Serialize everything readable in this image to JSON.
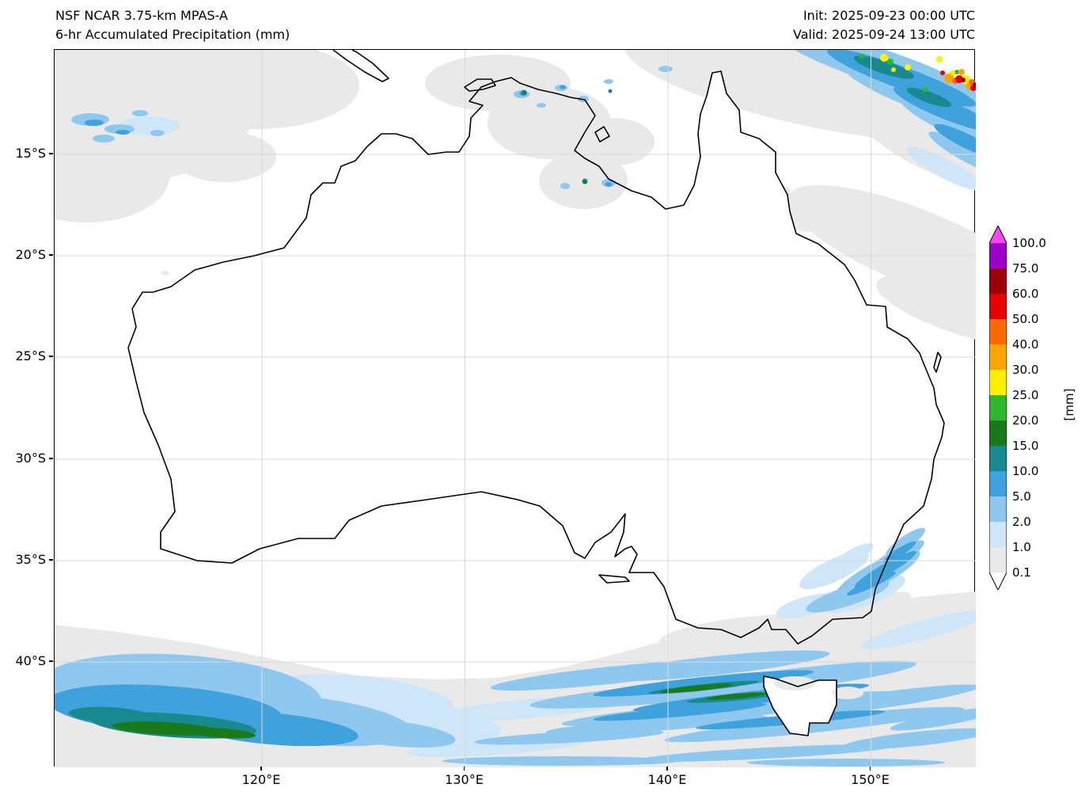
{
  "header": {
    "model_title": "NSF NCAR 3.75-km MPAS-A",
    "product_title": "6-hr Accumulated Precipitation (mm)",
    "init_time": "Init: 2025-09-23 00:00 UTC",
    "valid_time": "Valid: 2025-09-24 13:00 UTC"
  },
  "map": {
    "x_tick_labels": [
      "120°E",
      "130°E",
      "140°E",
      "150°E"
    ],
    "y_tick_labels": [
      "15°S",
      "20°S",
      "25°S",
      "30°S",
      "35°S",
      "40°S"
    ]
  },
  "colorbar": {
    "unit_label": "[mm]",
    "tick_labels": [
      "100.0",
      "75.0",
      "60.0",
      "50.0",
      "40.0",
      "30.0",
      "25.0",
      "20.0",
      "15.0",
      "10.0",
      "5.0",
      "2.0",
      "1.0",
      "0.1"
    ],
    "colors_top_to_bottom": [
      "#f646f0",
      "#9a00c8",
      "#9a0005",
      "#e60000",
      "#ff6a00",
      "#ffa500",
      "#fff000",
      "#2eb82e",
      "#1a7a1a",
      "#17898f",
      "#3fa2dc",
      "#8fc8ef",
      "#cfe5f8",
      "#e9e9e9",
      "#ffffff"
    ]
  }
}
